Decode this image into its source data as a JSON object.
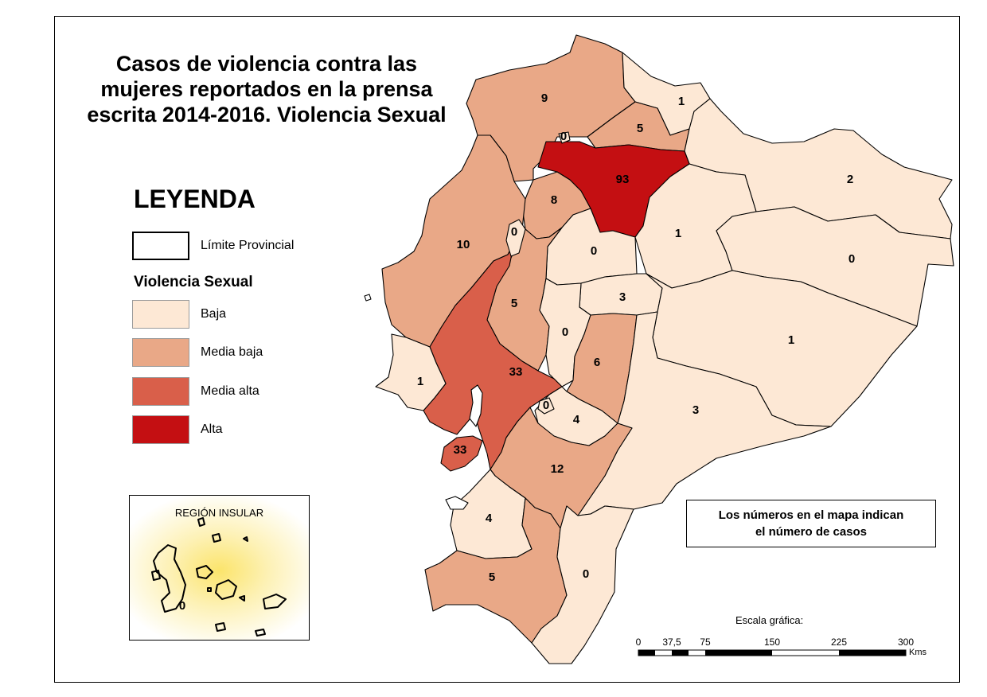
{
  "title_lines": [
    "Casos de violencia contra las",
    "mujeres reportados en la prensa",
    "escrita 2014-2016. Violencia Sexual"
  ],
  "legend": {
    "heading": "LEYENDA",
    "boundary_label": "Límite Provincial",
    "variable_title": "Violencia Sexual",
    "classes": [
      {
        "label": "Baja",
        "color": "#fde8d5"
      },
      {
        "label": "Media baja",
        "color": "#e9a887"
      },
      {
        "label": "Media alta",
        "color": "#d95f4a"
      },
      {
        "label": "Alta",
        "color": "#c40f12"
      }
    ]
  },
  "note_lines": [
    "Los números en el mapa indican",
    "el número de casos"
  ],
  "inset": {
    "title": "REGIÓN INSULAR",
    "value": "0"
  },
  "scale": {
    "title": "Escala gráfica:",
    "ticks": [
      "0",
      "37,5",
      "75",
      "150",
      "225",
      "300"
    ],
    "units": "Kms"
  },
  "provinces": [
    {
      "id": "esmeraldas",
      "value": "9",
      "class": "Media baja"
    },
    {
      "id": "carchi",
      "value": "1",
      "class": "Baja"
    },
    {
      "id": "imbabura",
      "value": "5",
      "class": "Media baja"
    },
    {
      "id": "imbabura-coast-detail",
      "value": "0",
      "class": "Baja"
    },
    {
      "id": "pichincha",
      "value": "93",
      "class": "Alta"
    },
    {
      "id": "sucumbios",
      "value": "2",
      "class": "Baja"
    },
    {
      "id": "napo",
      "value": "1",
      "class": "Baja"
    },
    {
      "id": "orellana",
      "value": "0",
      "class": "Baja"
    },
    {
      "id": "santo-domingo",
      "value": "8",
      "class": "Media baja"
    },
    {
      "id": "manabi",
      "value": "10",
      "class": "Media baja"
    },
    {
      "id": "santo-domingo-detail",
      "value": "0",
      "class": "Baja"
    },
    {
      "id": "cotopaxi",
      "value": "0",
      "class": "Baja"
    },
    {
      "id": "los-rios",
      "value": "5",
      "class": "Media baja"
    },
    {
      "id": "tungurahua",
      "value": "3",
      "class": "Baja"
    },
    {
      "id": "bolivar",
      "value": "0",
      "class": "Baja"
    },
    {
      "id": "pastaza",
      "value": "1",
      "class": "Baja"
    },
    {
      "id": "chimborazo",
      "value": "6",
      "class": "Media baja"
    },
    {
      "id": "guayas",
      "value": "33",
      "class": "Media alta"
    },
    {
      "id": "santa-elena",
      "value": "1",
      "class": "Baja"
    },
    {
      "id": "canar-detail",
      "value": "0",
      "class": "Baja"
    },
    {
      "id": "canar",
      "value": "4",
      "class": "Baja"
    },
    {
      "id": "morona-santiago",
      "value": "3",
      "class": "Baja"
    },
    {
      "id": "puna",
      "value": "33",
      "class": "Media alta"
    },
    {
      "id": "azuay",
      "value": "12",
      "class": "Media baja"
    },
    {
      "id": "el-oro",
      "value": "4",
      "class": "Baja"
    },
    {
      "id": "loja",
      "value": "5",
      "class": "Media baja"
    },
    {
      "id": "zamora-chinchipe",
      "value": "0",
      "class": "Baja"
    }
  ]
}
